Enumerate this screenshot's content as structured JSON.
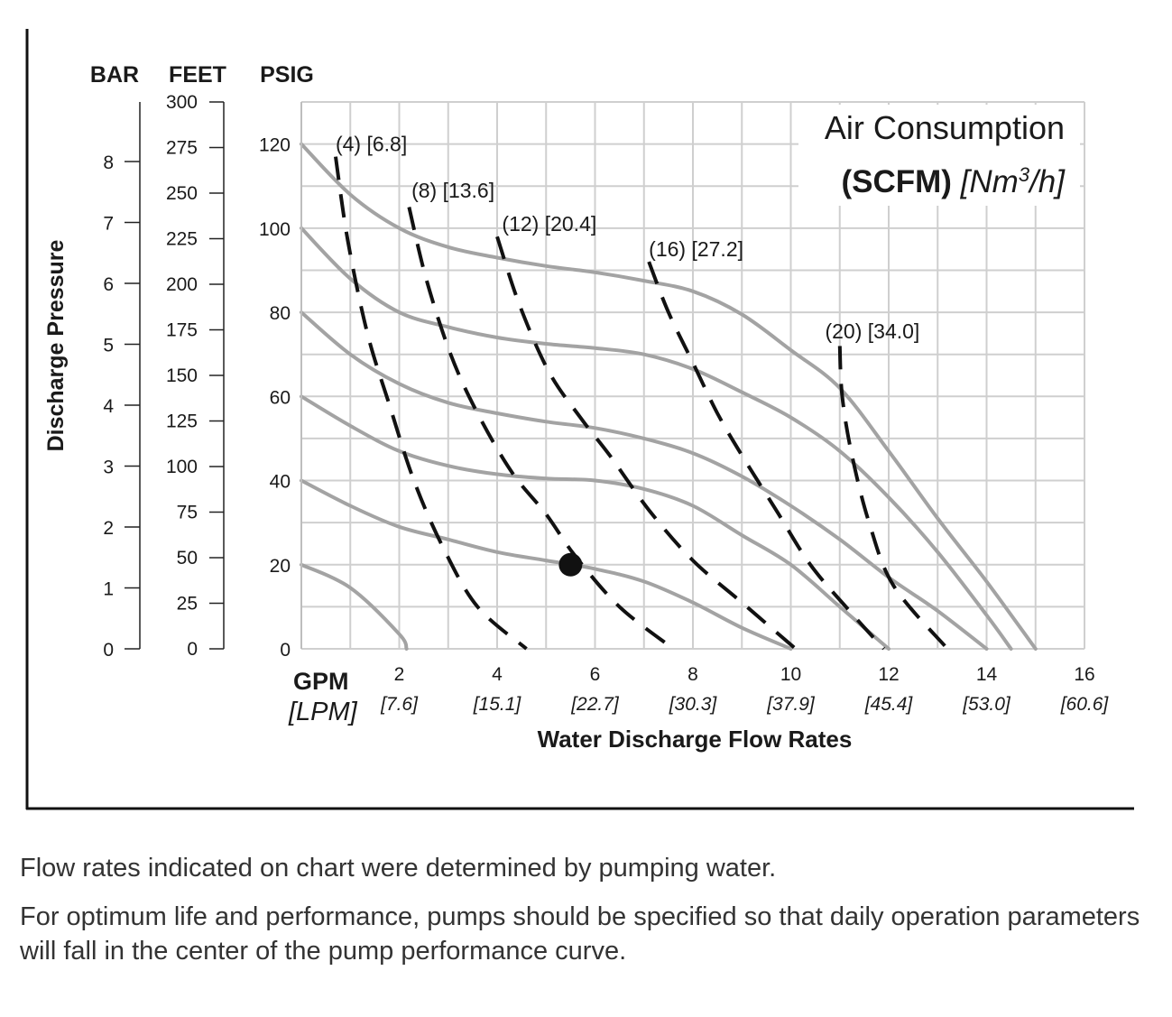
{
  "chart_data": {
    "type": "line",
    "x": {
      "label": "Water Discharge Flow Rates",
      "unit_primary": "GPM",
      "unit_secondary": "[LPM]",
      "range": [
        0,
        16
      ],
      "ticks": [
        2,
        4,
        6,
        8,
        10,
        12,
        14,
        16
      ],
      "ticks_secondary": [
        "[7.6]",
        "[15.1]",
        "[22.7]",
        "[30.3]",
        "[37.9]",
        "[45.4]",
        "[53.0]",
        "[60.6]"
      ],
      "grid": true
    },
    "y": {
      "label": "Discharge Pressure",
      "primary_unit": "PSIG",
      "range": [
        0,
        130
      ],
      "ticks": [
        0,
        20,
        40,
        60,
        80,
        100,
        120
      ],
      "grid": true,
      "secondary_axes": [
        {
          "unit": "FEET",
          "ticks": [
            0,
            25,
            50,
            75,
            100,
            125,
            150,
            175,
            200,
            225,
            250,
            275,
            300
          ]
        },
        {
          "unit": "BAR",
          "ticks": [
            0,
            1,
            2,
            3,
            4,
            5,
            6,
            7,
            8
          ]
        }
      ]
    },
    "legend": {
      "title": "Air Consumption",
      "subtitle_bold": "(SCFM)",
      "subtitle_unit": "[Nm3/h]",
      "placement": "top-right"
    },
    "series": [
      {
        "kind": "pressure-curve",
        "points": [
          [
            0,
            20
          ],
          [
            1,
            14.5
          ],
          [
            2,
            3.5
          ],
          [
            2.15,
            0
          ]
        ]
      },
      {
        "kind": "pressure-curve",
        "points": [
          [
            0,
            40
          ],
          [
            1,
            34
          ],
          [
            2,
            29
          ],
          [
            3,
            26
          ],
          [
            4,
            23
          ],
          [
            5,
            21
          ],
          [
            6,
            19
          ],
          [
            7,
            16
          ],
          [
            8,
            11
          ],
          [
            9,
            5
          ],
          [
            10,
            0
          ]
        ]
      },
      {
        "kind": "pressure-curve",
        "points": [
          [
            0,
            60
          ],
          [
            1,
            53
          ],
          [
            2,
            47
          ],
          [
            3,
            43.5
          ],
          [
            4,
            41.5
          ],
          [
            5,
            40.5
          ],
          [
            6,
            40
          ],
          [
            7,
            38
          ],
          [
            8,
            34
          ],
          [
            9,
            27
          ],
          [
            10,
            20
          ],
          [
            11,
            10
          ],
          [
            12,
            0
          ]
        ]
      },
      {
        "kind": "pressure-curve",
        "points": [
          [
            0,
            80
          ],
          [
            1,
            70
          ],
          [
            2,
            63
          ],
          [
            3,
            58.5
          ],
          [
            4,
            56
          ],
          [
            5,
            54
          ],
          [
            6,
            52.5
          ],
          [
            7,
            50
          ],
          [
            8,
            46.5
          ],
          [
            9,
            41
          ],
          [
            10,
            34
          ],
          [
            11,
            26
          ],
          [
            12,
            17
          ],
          [
            13,
            9
          ],
          [
            14,
            0
          ]
        ]
      },
      {
        "kind": "pressure-curve",
        "points": [
          [
            0,
            100
          ],
          [
            1,
            88
          ],
          [
            2,
            80
          ],
          [
            3,
            76.5
          ],
          [
            4,
            74
          ],
          [
            5,
            72.5
          ],
          [
            6,
            71.5
          ],
          [
            7,
            70
          ],
          [
            8,
            66.5
          ],
          [
            9,
            61
          ],
          [
            10,
            55
          ],
          [
            11,
            47
          ],
          [
            12,
            36
          ],
          [
            13,
            23
          ],
          [
            14,
            8
          ],
          [
            14.5,
            0
          ]
        ]
      },
      {
        "kind": "pressure-curve",
        "points": [
          [
            0,
            120
          ],
          [
            1,
            108
          ],
          [
            2,
            100
          ],
          [
            3,
            95.5
          ],
          [
            4,
            93
          ],
          [
            5,
            91
          ],
          [
            6,
            89.5
          ],
          [
            7,
            87.5
          ],
          [
            8,
            85
          ],
          [
            9,
            79.5
          ],
          [
            10,
            71
          ],
          [
            11,
            62
          ],
          [
            12,
            47
          ],
          [
            13,
            31
          ],
          [
            14,
            16
          ],
          [
            15,
            0
          ]
        ]
      },
      {
        "kind": "air-consumption",
        "name": "(4) [6.8]",
        "label_anchor": [
          0.7,
          120
        ],
        "points": [
          [
            0.7,
            117
          ],
          [
            0.95,
            97
          ],
          [
            1.35,
            75
          ],
          [
            1.8,
            58
          ],
          [
            2.3,
            40
          ],
          [
            2.9,
            24
          ],
          [
            3.6,
            10
          ],
          [
            4.6,
            0
          ]
        ]
      },
      {
        "kind": "air-consumption",
        "name": "(8) [13.6]",
        "label_anchor": [
          2.25,
          109
        ],
        "points": [
          [
            2.2,
            105
          ],
          [
            2.55,
            88
          ],
          [
            3.05,
            70
          ],
          [
            3.6,
            56
          ],
          [
            4.3,
            42
          ],
          [
            5,
            32
          ],
          [
            5.6,
            22
          ],
          [
            6.5,
            10
          ],
          [
            7.6,
            0
          ]
        ]
      },
      {
        "kind": "air-consumption",
        "name": "(12) [20.4]",
        "label_anchor": [
          4.1,
          101
        ],
        "points": [
          [
            4,
            98
          ],
          [
            4.45,
            82
          ],
          [
            5.05,
            66
          ],
          [
            5.7,
            55
          ],
          [
            6.3,
            46
          ],
          [
            7.1,
            33
          ],
          [
            8,
            21
          ],
          [
            9,
            11
          ],
          [
            10.1,
            0
          ]
        ]
      },
      {
        "kind": "air-consumption",
        "name": "(16) [27.2]",
        "label_anchor": [
          7.1,
          95
        ],
        "points": [
          [
            7.1,
            92
          ],
          [
            7.5,
            80
          ],
          [
            8,
            68
          ],
          [
            8.5,
            56
          ],
          [
            9,
            46
          ],
          [
            9.7,
            33
          ],
          [
            10.4,
            20
          ],
          [
            11.2,
            9
          ],
          [
            11.9,
            0
          ]
        ]
      },
      {
        "kind": "air-consumption",
        "name": "(20) [34.0]",
        "label_anchor": [
          10.7,
          75.5
        ],
        "points": [
          [
            11,
            72
          ],
          [
            11.05,
            60
          ],
          [
            11.25,
            46
          ],
          [
            11.6,
            30
          ],
          [
            12.1,
            15
          ],
          [
            13.2,
            0
          ]
        ]
      }
    ],
    "operating_point": {
      "x": 5.5,
      "y": 20
    },
    "axis_unit_labels": {
      "bar": "BAR",
      "feet": "FEET",
      "psig": "PSIG"
    }
  },
  "notes": [
    "Flow rates indicated on chart were determined by pumping water.",
    "For optimum life and performance, pumps should be specified so that daily operation parameters will fall in the center of the pump performance curve."
  ]
}
